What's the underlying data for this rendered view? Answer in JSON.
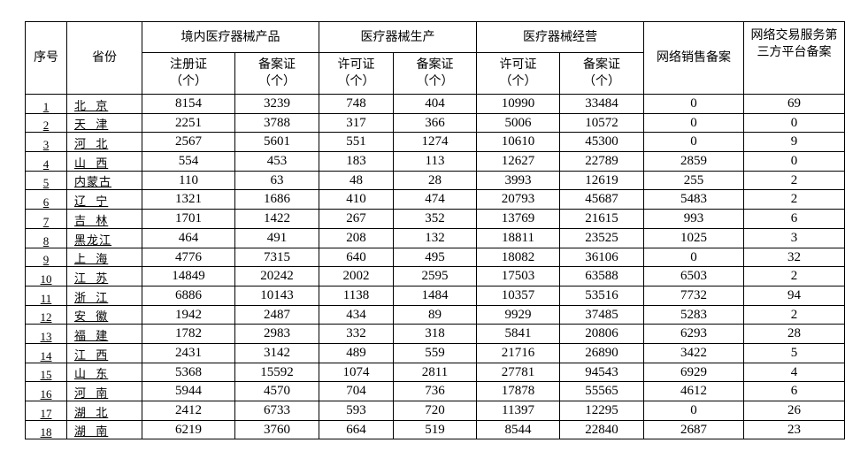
{
  "header": {
    "seq": "序号",
    "province": "省份",
    "group_products": "境内医疗器械产品",
    "group_production": "医疗器械生产",
    "group_operation": "医疗器械经营",
    "online_sales": "网络销售备案",
    "third_party": "网络交易服务第三方平台备案",
    "sub": [
      "注册证（个）",
      "备案证（个）",
      "许可证（个）",
      "备案证（个）",
      "许可证（个）",
      "备案证（个）"
    ]
  },
  "rows": [
    {
      "seq": "1",
      "province": "北  京",
      "values": [
        "8154",
        "3239",
        "748",
        "404",
        "10990",
        "33484",
        "0",
        "69"
      ]
    },
    {
      "seq": "2",
      "province": "天  津",
      "values": [
        "2251",
        "3788",
        "317",
        "366",
        "5006",
        "10572",
        "0",
        "0"
      ]
    },
    {
      "seq": "3",
      "province": "河  北",
      "values": [
        "2567",
        "5601",
        "551",
        "1274",
        "10610",
        "45300",
        "0",
        "9"
      ]
    },
    {
      "seq": "4",
      "province": "山  西",
      "values": [
        "554",
        "453",
        "183",
        "113",
        "12627",
        "22789",
        "2859",
        "0"
      ]
    },
    {
      "seq": "5",
      "province": "内蒙古",
      "values": [
        "110",
        "63",
        "48",
        "28",
        "3993",
        "12619",
        "255",
        "2"
      ]
    },
    {
      "seq": "6",
      "province": "辽  宁",
      "values": [
        "1321",
        "1686",
        "410",
        "474",
        "20793",
        "45687",
        "5483",
        "2"
      ]
    },
    {
      "seq": "7",
      "province": "吉  林",
      "values": [
        "1701",
        "1422",
        "267",
        "352",
        "13769",
        "21615",
        "993",
        "6"
      ]
    },
    {
      "seq": "8",
      "province": "黑龙江",
      "values": [
        "464",
        "491",
        "208",
        "132",
        "18811",
        "23525",
        "1025",
        "3"
      ]
    },
    {
      "seq": "9",
      "province": "上  海",
      "values": [
        "4776",
        "7315",
        "640",
        "495",
        "18082",
        "36106",
        "0",
        "32"
      ]
    },
    {
      "seq": "10",
      "province": "江  苏",
      "values": [
        "14849",
        "20242",
        "2002",
        "2595",
        "17503",
        "63588",
        "6503",
        "2"
      ]
    },
    {
      "seq": "11",
      "province": "浙  江",
      "values": [
        "6886",
        "10143",
        "1138",
        "1484",
        "10357",
        "53516",
        "7732",
        "94"
      ]
    },
    {
      "seq": "12",
      "province": "安  徽",
      "values": [
        "1942",
        "2487",
        "434",
        "89",
        "9929",
        "37485",
        "5283",
        "2"
      ]
    },
    {
      "seq": "13",
      "province": "福  建",
      "values": [
        "1782",
        "2983",
        "332",
        "318",
        "5841",
        "20806",
        "6293",
        "28"
      ]
    },
    {
      "seq": "14",
      "province": "江  西",
      "values": [
        "2431",
        "3142",
        "489",
        "559",
        "21716",
        "26890",
        "3422",
        "5"
      ]
    },
    {
      "seq": "15",
      "province": "山  东",
      "values": [
        "5368",
        "15592",
        "1074",
        "2811",
        "27781",
        "94543",
        "6929",
        "4"
      ]
    },
    {
      "seq": "16",
      "province": "河  南",
      "values": [
        "5944",
        "4570",
        "704",
        "736",
        "17878",
        "55565",
        "4612",
        "6"
      ]
    },
    {
      "seq": "17",
      "province": "湖  北",
      "values": [
        "2412",
        "6733",
        "593",
        "720",
        "11397",
        "12295",
        "0",
        "26"
      ]
    },
    {
      "seq": "18",
      "province": "湖  南",
      "values": [
        "6219",
        "3760",
        "664",
        "519",
        "8544",
        "22840",
        "2687",
        "23"
      ]
    }
  ]
}
